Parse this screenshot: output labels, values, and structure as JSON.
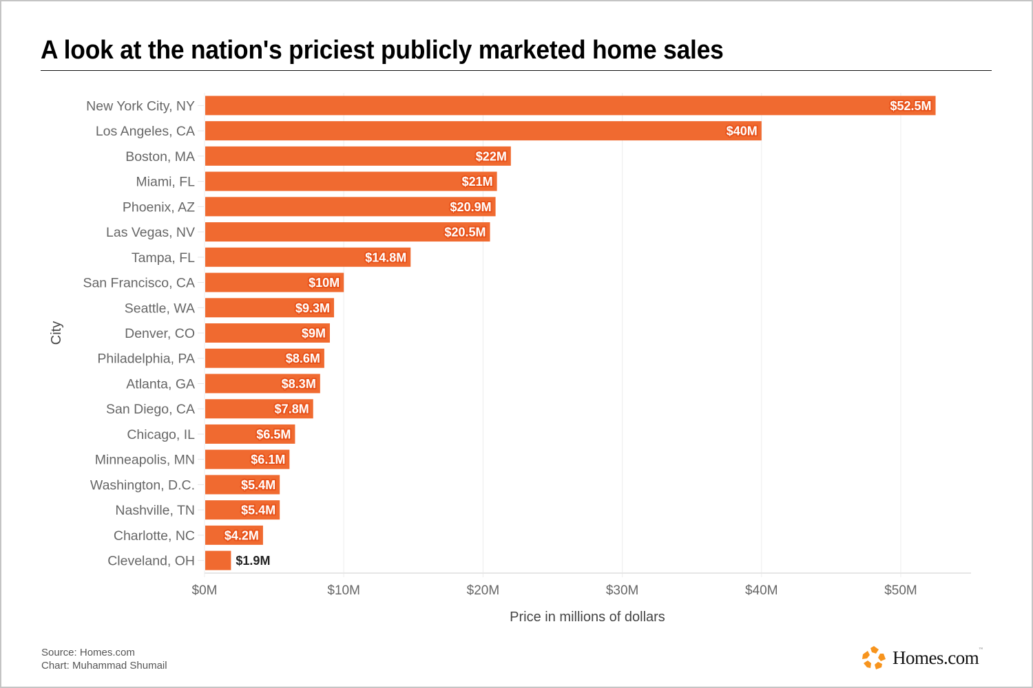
{
  "title": "A look at the nation's priciest publicly marketed home sales",
  "footer": {
    "source": "Source: Homes.com",
    "credit": "Chart: Muhammad Shumail"
  },
  "logo": {
    "text": "Homes.com",
    "icon": "homes-com-star-logo-icon",
    "color": "#f7941d"
  },
  "colors": {
    "bar": "#f06a30",
    "label_halo": "#e8531b",
    "label_text": "#ffffff",
    "outside_label_text": "#222222",
    "axis_text": "#666666",
    "grid": "#ececec"
  },
  "chart_data": {
    "type": "bar",
    "orientation": "horizontal",
    "title": "A look at the nation's priciest publicly marketed home sales",
    "xlabel": "Price in millions of dollars",
    "ylabel": "City",
    "xlim": [
      0,
      55
    ],
    "xticks": [
      0,
      10,
      20,
      30,
      40,
      50
    ],
    "xtick_labels": [
      "$0M",
      "$10M",
      "$20M",
      "$30M",
      "$40M",
      "$50M"
    ],
    "grid": true,
    "categories": [
      "New York City, NY",
      "Los Angeles, CA",
      "Boston, MA",
      "Miami, FL",
      "Phoenix, AZ",
      "Las Vegas, NV",
      "Tampa, FL",
      "San Francisco, CA",
      "Seattle, WA",
      "Denver, CO",
      "Philadelphia, PA",
      "Atlanta, GA",
      "San Diego, CA",
      "Chicago, IL",
      "Minneapolis, MN",
      "Washington, D.C.",
      "Nashville, TN",
      "Charlotte, NC",
      "Cleveland, OH"
    ],
    "values": [
      52.5,
      40,
      22,
      21,
      20.9,
      20.5,
      14.8,
      10,
      9.3,
      9,
      8.6,
      8.3,
      7.8,
      6.5,
      6.1,
      5.4,
      5.4,
      4.2,
      1.9
    ],
    "data_labels": [
      "$52.5M",
      "$40M",
      "$22M",
      "$21M",
      "$20.9M",
      "$20.5M",
      "$14.8M",
      "$10M",
      "$9.3M",
      "$9M",
      "$8.6M",
      "$8.3M",
      "$7.8M",
      "$6.5M",
      "$6.1M",
      "$5.4M",
      "$5.4M",
      "$4.2M",
      "$1.9M"
    ],
    "legend": "none"
  }
}
